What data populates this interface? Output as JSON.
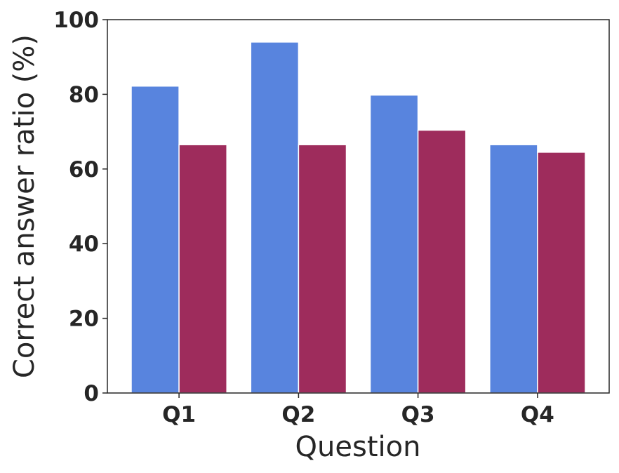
{
  "chart_data": {
    "type": "bar",
    "title": "",
    "xlabel": "Question",
    "ylabel": "Correct answer ratio (%)",
    "categories": [
      "Q1",
      "Q2",
      "Q3",
      "Q4"
    ],
    "series": [
      {
        "color": "#5884DE",
        "values": [
          82.2,
          94.0,
          79.8,
          66.5
        ]
      },
      {
        "color": "#9E2C5C",
        "values": [
          66.5,
          66.5,
          70.4,
          64.5
        ]
      }
    ],
    "ylim": [
      0,
      100
    ],
    "yticks": [
      0,
      20,
      40,
      60,
      80,
      100
    ],
    "grid": false,
    "legend": "none"
  }
}
